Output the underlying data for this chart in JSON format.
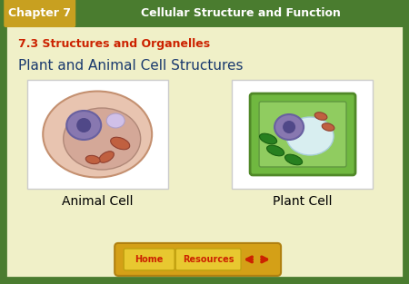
{
  "header_bg_color": "#4a7c2f",
  "header_text_color": "#ffffff",
  "header_chapter_text": "Chapter 7",
  "header_chapter_bg": "#c8a020",
  "header_title_text": "Cellular Structure and Function",
  "subheader_text": "7.3 Structures and Organelles",
  "subheader_color": "#cc2200",
  "main_title": "Plant and Animal Cell Structures",
  "main_title_color": "#1a3a6e",
  "bg_color": "#f5f5dc",
  "slide_bg_color": "#f0f0c8",
  "border_color": "#4a7c2f",
  "label_left": "Animal Cell",
  "label_right": "Plant Cell",
  "label_color": "#000000",
  "footer_bg": "#d4a017",
  "footer_text1": "Home",
  "footer_text2": "Resources",
  "footer_text_color": "#cc2200",
  "footer_arrow_color": "#cc2200"
}
